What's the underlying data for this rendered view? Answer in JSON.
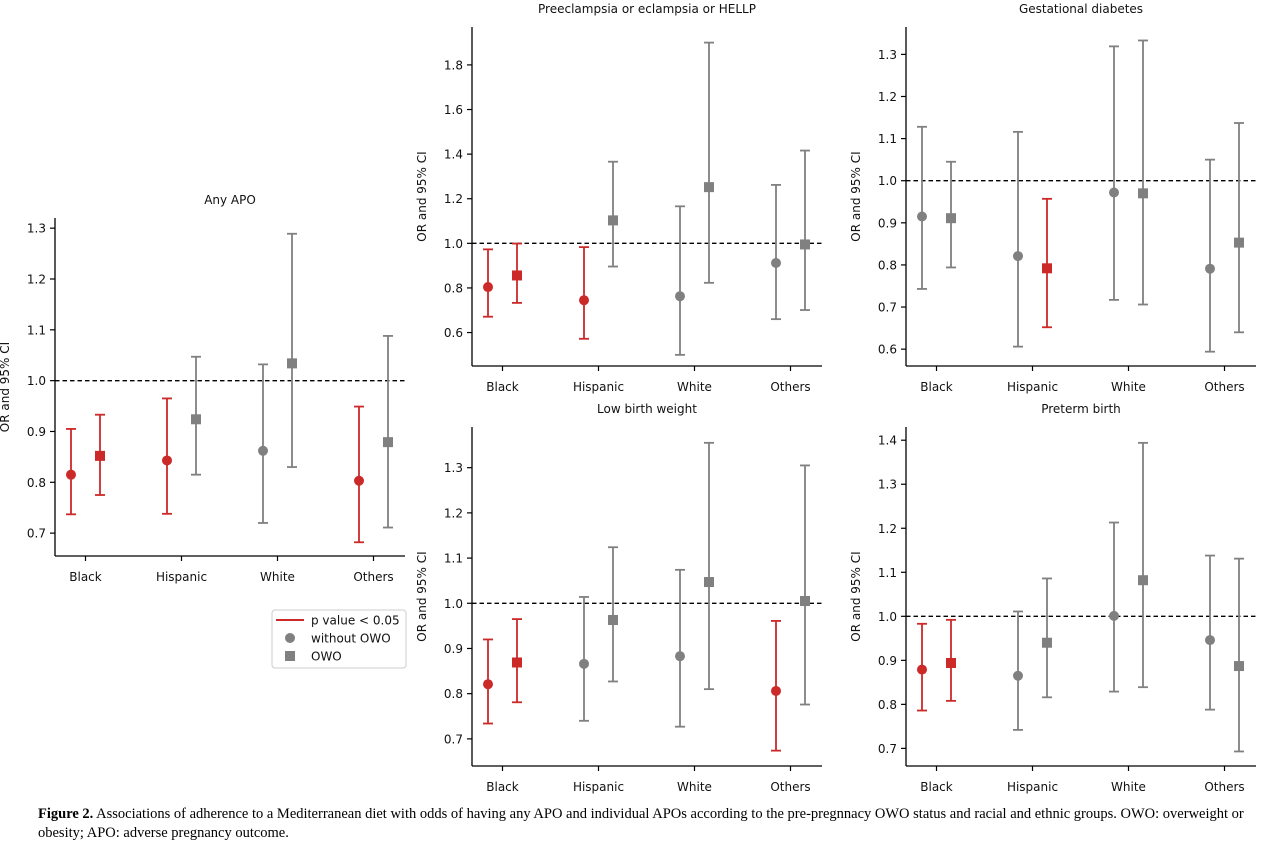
{
  "colors": {
    "significant": "#cc2929",
    "not_significant": "#808080",
    "axis": "#000000",
    "reference": "#000000"
  },
  "legend": {
    "items": [
      {
        "label": "p value < 0.05",
        "marker": "line",
        "color": "#cc2929"
      },
      {
        "label": "without OWO",
        "marker": "circle",
        "color": "#808080"
      },
      {
        "label": "OWO",
        "marker": "square",
        "color": "#808080"
      }
    ]
  },
  "caption": {
    "label": "Figure 2.",
    "text": " Associations of adherence to a Mediterranean diet with odds of having any APO and individual APOs according to the pre-pregnnacy OWO status and racial and ethnic groups. OWO: overweight or obesity; APO: adverse pregnancy outcome."
  },
  "chart_data": [
    {
      "type": "scatter",
      "title": "Any APO",
      "ylabel": "OR and 95% CI",
      "categories": [
        "Black",
        "Hispanic",
        "White",
        "Others"
      ],
      "ylim": [
        0.655,
        1.32
      ],
      "yticks": [
        0.7,
        0.8,
        0.9,
        1.0,
        1.1,
        1.2,
        1.3
      ],
      "ytick_labels": [
        "0.7",
        "0.8",
        "0.9",
        "1.0",
        "1.1",
        "1.2",
        "1.3"
      ],
      "reference_line": 1.0,
      "series": [
        {
          "name": "without OWO",
          "marker": "circle",
          "points": [
            {
              "category": "Black",
              "or": 0.815,
              "lo": 0.737,
              "hi": 0.905,
              "significant": true
            },
            {
              "category": "Hispanic",
              "or": 0.843,
              "lo": 0.738,
              "hi": 0.965,
              "significant": true
            },
            {
              "category": "White",
              "or": 0.862,
              "lo": 0.72,
              "hi": 1.032,
              "significant": false
            },
            {
              "category": "Others",
              "or": 0.803,
              "lo": 0.682,
              "hi": 0.949,
              "significant": true
            }
          ]
        },
        {
          "name": "OWO",
          "marker": "square",
          "points": [
            {
              "category": "Black",
              "or": 0.852,
              "lo": 0.775,
              "hi": 0.933,
              "significant": true
            },
            {
              "category": "Hispanic",
              "or": 0.924,
              "lo": 0.815,
              "hi": 1.047,
              "significant": false
            },
            {
              "category": "White",
              "or": 1.034,
              "lo": 0.83,
              "hi": 1.289,
              "significant": false
            },
            {
              "category": "Others",
              "or": 0.879,
              "lo": 0.711,
              "hi": 1.088,
              "significant": false
            }
          ]
        }
      ]
    },
    {
      "type": "scatter",
      "title": "Preeclampsia or eclampsia or HELLP",
      "ylabel": "OR and 95% CI",
      "categories": [
        "Black",
        "Hispanic",
        "White",
        "Others"
      ],
      "ylim": [
        0.45,
        1.97
      ],
      "yticks": [
        0.6,
        0.8,
        1.0,
        1.2,
        1.4,
        1.6,
        1.8
      ],
      "ytick_labels": [
        "0.6",
        "0.8",
        "1.0",
        "1.2",
        "1.4",
        "1.6",
        "1.8"
      ],
      "reference_line": 1.0,
      "series": [
        {
          "name": "without OWO",
          "marker": "circle",
          "points": [
            {
              "category": "Black",
              "or": 0.804,
              "lo": 0.671,
              "hi": 0.973,
              "significant": true
            },
            {
              "category": "Hispanic",
              "or": 0.745,
              "lo": 0.572,
              "hi": 0.983,
              "significant": true
            },
            {
              "category": "White",
              "or": 0.763,
              "lo": 0.5,
              "hi": 1.166,
              "significant": false
            },
            {
              "category": "Others",
              "or": 0.912,
              "lo": 0.66,
              "hi": 1.262,
              "significant": false
            }
          ]
        },
        {
          "name": "OWO",
          "marker": "square",
          "points": [
            {
              "category": "Black",
              "or": 0.856,
              "lo": 0.733,
              "hi": 0.999,
              "significant": true
            },
            {
              "category": "Hispanic",
              "or": 1.103,
              "lo": 0.896,
              "hi": 1.366,
              "significant": false
            },
            {
              "category": "White",
              "or": 1.252,
              "lo": 0.823,
              "hi": 1.9,
              "significant": false
            },
            {
              "category": "Others",
              "or": 0.995,
              "lo": 0.701,
              "hi": 1.416,
              "significant": false
            }
          ]
        }
      ]
    },
    {
      "type": "scatter",
      "title": "Gestational diabetes",
      "ylabel": "OR and 95% CI",
      "categories": [
        "Black",
        "Hispanic",
        "White",
        "Others"
      ],
      "ylim": [
        0.56,
        1.365
      ],
      "yticks": [
        0.6,
        0.7,
        0.8,
        0.9,
        1.0,
        1.1,
        1.2,
        1.3
      ],
      "ytick_labels": [
        "0.6",
        "0.7",
        "0.8",
        "0.9",
        "1.0",
        "1.1",
        "1.2",
        "1.3"
      ],
      "reference_line": 1.0,
      "series": [
        {
          "name": "without OWO",
          "marker": "circle",
          "points": [
            {
              "category": "Black",
              "or": 0.915,
              "lo": 0.743,
              "hi": 1.128,
              "significant": false
            },
            {
              "category": "Hispanic",
              "or": 0.821,
              "lo": 0.606,
              "hi": 1.116,
              "significant": false
            },
            {
              "category": "White",
              "or": 0.972,
              "lo": 0.717,
              "hi": 1.319,
              "significant": false
            },
            {
              "category": "Others",
              "or": 0.791,
              "lo": 0.594,
              "hi": 1.05,
              "significant": false
            }
          ]
        },
        {
          "name": "OWO",
          "marker": "square",
          "points": [
            {
              "category": "Black",
              "or": 0.911,
              "lo": 0.794,
              "hi": 1.045,
              "significant": false
            },
            {
              "category": "Hispanic",
              "or": 0.792,
              "lo": 0.652,
              "hi": 0.957,
              "significant": true
            },
            {
              "category": "White",
              "or": 0.97,
              "lo": 0.706,
              "hi": 1.333,
              "significant": false
            },
            {
              "category": "Others",
              "or": 0.853,
              "lo": 0.64,
              "hi": 1.137,
              "significant": false
            }
          ]
        }
      ]
    },
    {
      "type": "scatter",
      "title": "Low birth weight",
      "ylabel": "OR and 95% CI",
      "categories": [
        "Black",
        "Hispanic",
        "White",
        "Others"
      ],
      "ylim": [
        0.64,
        1.39
      ],
      "yticks": [
        0.7,
        0.8,
        0.9,
        1.0,
        1.1,
        1.2,
        1.3
      ],
      "ytick_labels": [
        "0.7",
        "0.8",
        "0.9",
        "1.0",
        "1.1",
        "1.2",
        "1.3"
      ],
      "reference_line": 1.0,
      "series": [
        {
          "name": "without OWO",
          "marker": "circle",
          "points": [
            {
              "category": "Black",
              "or": 0.821,
              "lo": 0.734,
              "hi": 0.92,
              "significant": true
            },
            {
              "category": "Hispanic",
              "or": 0.866,
              "lo": 0.74,
              "hi": 1.014,
              "significant": false
            },
            {
              "category": "White",
              "or": 0.883,
              "lo": 0.727,
              "hi": 1.074,
              "significant": false
            },
            {
              "category": "Others",
              "or": 0.806,
              "lo": 0.674,
              "hi": 0.961,
              "significant": true
            }
          ]
        },
        {
          "name": "OWO",
          "marker": "square",
          "points": [
            {
              "category": "Black",
              "or": 0.869,
              "lo": 0.781,
              "hi": 0.965,
              "significant": true
            },
            {
              "category": "Hispanic",
              "or": 0.963,
              "lo": 0.827,
              "hi": 1.124,
              "significant": false
            },
            {
              "category": "White",
              "or": 1.047,
              "lo": 0.81,
              "hi": 1.355,
              "significant": false
            },
            {
              "category": "Others",
              "or": 1.005,
              "lo": 0.776,
              "hi": 1.305,
              "significant": false
            }
          ]
        }
      ]
    },
    {
      "type": "scatter",
      "title": "Preterm birth",
      "ylabel": "OR and 95% CI",
      "categories": [
        "Black",
        "Hispanic",
        "White",
        "Others"
      ],
      "ylim": [
        0.66,
        1.43
      ],
      "yticks": [
        0.7,
        0.8,
        0.9,
        1.0,
        1.1,
        1.2,
        1.3,
        1.4
      ],
      "ytick_labels": [
        "0.7",
        "0.8",
        "0.9",
        "1.0",
        "1.1",
        "1.2",
        "1.3",
        "1.4"
      ],
      "reference_line": 1.0,
      "series": [
        {
          "name": "without OWO",
          "marker": "circle",
          "points": [
            {
              "category": "Black",
              "or": 0.879,
              "lo": 0.786,
              "hi": 0.983,
              "significant": true
            },
            {
              "category": "Hispanic",
              "or": 0.865,
              "lo": 0.742,
              "hi": 1.011,
              "significant": false
            },
            {
              "category": "White",
              "or": 1.001,
              "lo": 0.829,
              "hi": 1.213,
              "significant": false
            },
            {
              "category": "Others",
              "or": 0.946,
              "lo": 0.788,
              "hi": 1.138,
              "significant": false
            }
          ]
        },
        {
          "name": "OWO",
          "marker": "square",
          "points": [
            {
              "category": "Black",
              "or": 0.894,
              "lo": 0.808,
              "hi": 0.992,
              "significant": true
            },
            {
              "category": "Hispanic",
              "or": 0.94,
              "lo": 0.816,
              "hi": 1.086,
              "significant": false
            },
            {
              "category": "White",
              "or": 1.082,
              "lo": 0.839,
              "hi": 1.394,
              "significant": false
            },
            {
              "category": "Others",
              "or": 0.887,
              "lo": 0.693,
              "hi": 1.131,
              "significant": false
            }
          ]
        }
      ]
    }
  ]
}
